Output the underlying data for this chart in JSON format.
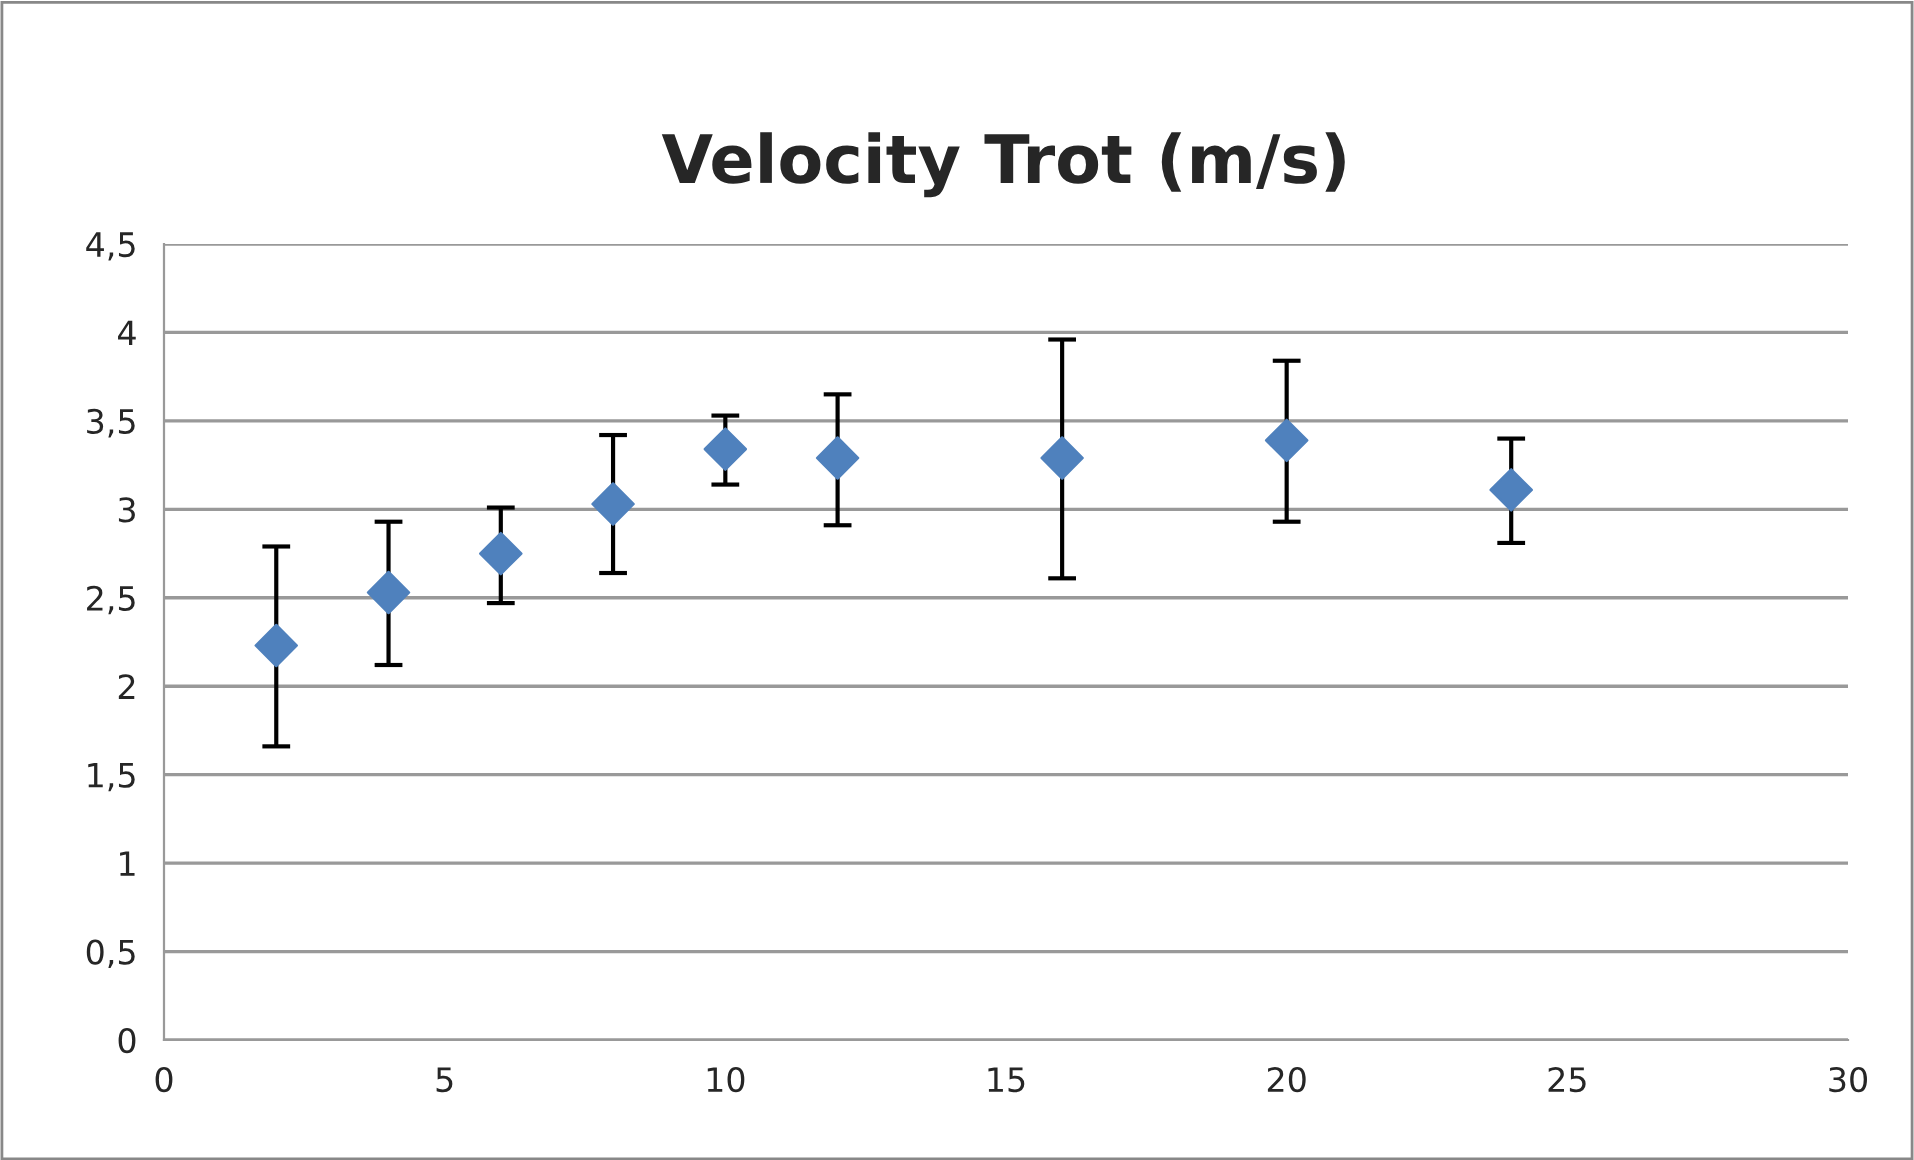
{
  "chart_data": {
    "type": "scatter",
    "title": "Velocity Trot (m/s)",
    "x": [
      2,
      4,
      6,
      8,
      10,
      12,
      16,
      20,
      24
    ],
    "values": [
      2.23,
      2.53,
      2.75,
      3.03,
      3.34,
      3.29,
      3.29,
      3.39,
      3.11
    ],
    "errors": [
      [
        1.66,
        2.79
      ],
      [
        2.12,
        2.93
      ],
      [
        2.47,
        3.01
      ],
      [
        2.64,
        3.42
      ],
      [
        3.14,
        3.53
      ],
      [
        2.91,
        3.65
      ],
      [
        2.61,
        3.96
      ],
      [
        2.93,
        3.84
      ],
      [
        2.81,
        3.4
      ]
    ],
    "color": "#4f81bd",
    "marker": "diamond",
    "xlim": [
      0,
      30
    ],
    "xticks": [
      0,
      5,
      10,
      15,
      20,
      25,
      30
    ],
    "ylim": [
      0,
      4.5
    ],
    "yticks": [
      0,
      {
        "value": 0.5,
        "label": "0,5"
      },
      1,
      {
        "value": 1.5,
        "label": "1,5"
      },
      2,
      {
        "value": 2.5,
        "label": "2,5"
      },
      3,
      {
        "value": 3.5,
        "label": "3,5"
      },
      4,
      {
        "value": 4.5,
        "label": "4,5"
      }
    ],
    "grid": "y"
  }
}
